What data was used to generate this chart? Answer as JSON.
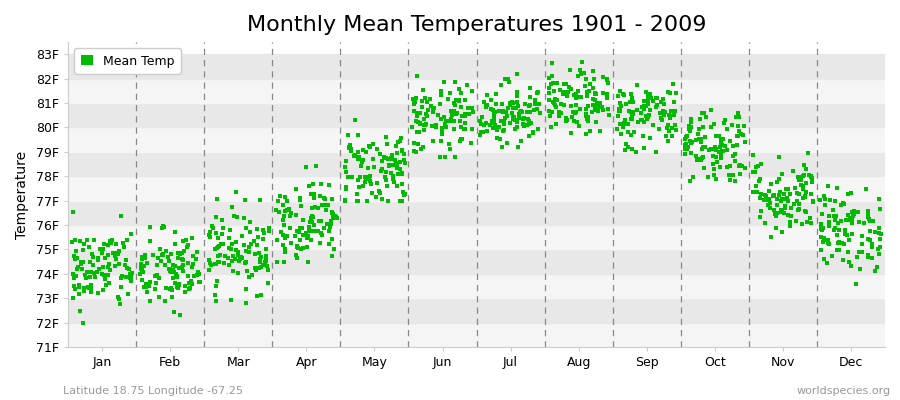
{
  "title": "Monthly Mean Temperatures 1901 - 2009",
  "ylabel": "Temperature",
  "subtitle": "Latitude 18.75 Longitude -67.25",
  "watermark": "worldspecies.org",
  "legend_label": "Mean Temp",
  "ylim": [
    71,
    83.5
  ],
  "yticks": [
    71,
    72,
    73,
    74,
    75,
    76,
    77,
    78,
    79,
    80,
    81,
    82,
    83
  ],
  "ytick_labels": [
    "71F",
    "72F",
    "73F",
    "74F",
    "75F",
    "76F",
    "77F",
    "78F",
    "79F",
    "80F",
    "81F",
    "82F",
    "83F"
  ],
  "months": [
    "Jan",
    "Feb",
    "Mar",
    "Apr",
    "May",
    "Jun",
    "Jul",
    "Aug",
    "Sep",
    "Oct",
    "Nov",
    "Dec"
  ],
  "month_means": [
    74.2,
    74.1,
    75.0,
    76.2,
    78.3,
    80.3,
    80.6,
    81.0,
    80.5,
    79.3,
    77.2,
    75.8
  ],
  "month_stds": [
    0.85,
    0.85,
    0.85,
    0.85,
    0.85,
    0.75,
    0.65,
    0.65,
    0.7,
    0.8,
    0.8,
    0.85
  ],
  "month_mins": [
    72.0,
    71.8,
    72.8,
    74.5,
    77.0,
    78.8,
    79.2,
    79.5,
    79.0,
    77.8,
    75.5,
    73.5
  ],
  "month_maxs": [
    76.8,
    76.8,
    77.5,
    78.5,
    80.5,
    82.5,
    82.5,
    83.2,
    82.5,
    81.5,
    79.5,
    78.5
  ],
  "n_years": 109,
  "dot_color": "#00BB00",
  "dot_size": 5,
  "background_color": "#FFFFFF",
  "plot_bg_light": "#F5F5F5",
  "plot_bg_dark": "#E8E8E8",
  "dashed_line_color": "#888888",
  "title_fontsize": 16,
  "axis_fontsize": 10,
  "tick_fontsize": 9,
  "legend_fontsize": 9,
  "subtitle_fontsize": 8,
  "watermark_fontsize": 8
}
